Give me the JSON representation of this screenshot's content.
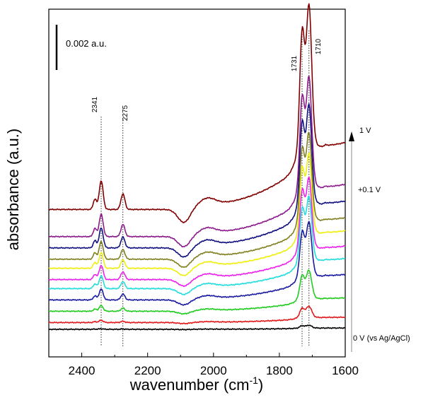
{
  "chart_data": {
    "type": "line",
    "title": "",
    "xlabel": "wavenumber (cm",
    "xlabel_superscript": "-1",
    "xlabel_close": ")",
    "ylabel": "absorbance (a.u.)",
    "xlim": [
      2500,
      1600
    ],
    "x_reversed": true,
    "xticks": [
      2400,
      2200,
      2000,
      1800,
      1600
    ],
    "scale_bar_label": "0.002 a.u.",
    "scale_bar_value": 0.002,
    "peak_labels": [
      "2341",
      "2275",
      "1731",
      "1710"
    ],
    "peak_positions": [
      2341,
      2275,
      1731,
      1710
    ],
    "potential_labels": {
      "top": "1 V",
      "middle": "+0.1 V",
      "bottom": "0 V (vs Ag/AgCl)"
    },
    "series": [
      {
        "color": "#000000",
        "amp": 0.02,
        "baseline": 0.0
      },
      {
        "color": "#e41a1c",
        "amp": 0.08,
        "baseline": 0.0003
      },
      {
        "color": "#22cc22",
        "amp": 0.2,
        "baseline": 0.0008
      },
      {
        "color": "#1a1aa0",
        "amp": 0.38,
        "baseline": 0.0013
      },
      {
        "color": "#22dddd",
        "amp": 0.45,
        "baseline": 0.0018
      },
      {
        "color": "#ee22ee",
        "amp": 0.5,
        "baseline": 0.0022
      },
      {
        "color": "#eeee11",
        "amp": 0.56,
        "baseline": 0.0027
      },
      {
        "color": "#808020",
        "amp": 0.62,
        "baseline": 0.0031
      },
      {
        "color": "#101080",
        "amp": 0.7,
        "baseline": 0.0036
      },
      {
        "color": "#8b1a8b",
        "amp": 0.78,
        "baseline": 0.0041
      },
      {
        "color": "#800000",
        "amp": 1.0,
        "baseline": 0.0053
      }
    ]
  }
}
